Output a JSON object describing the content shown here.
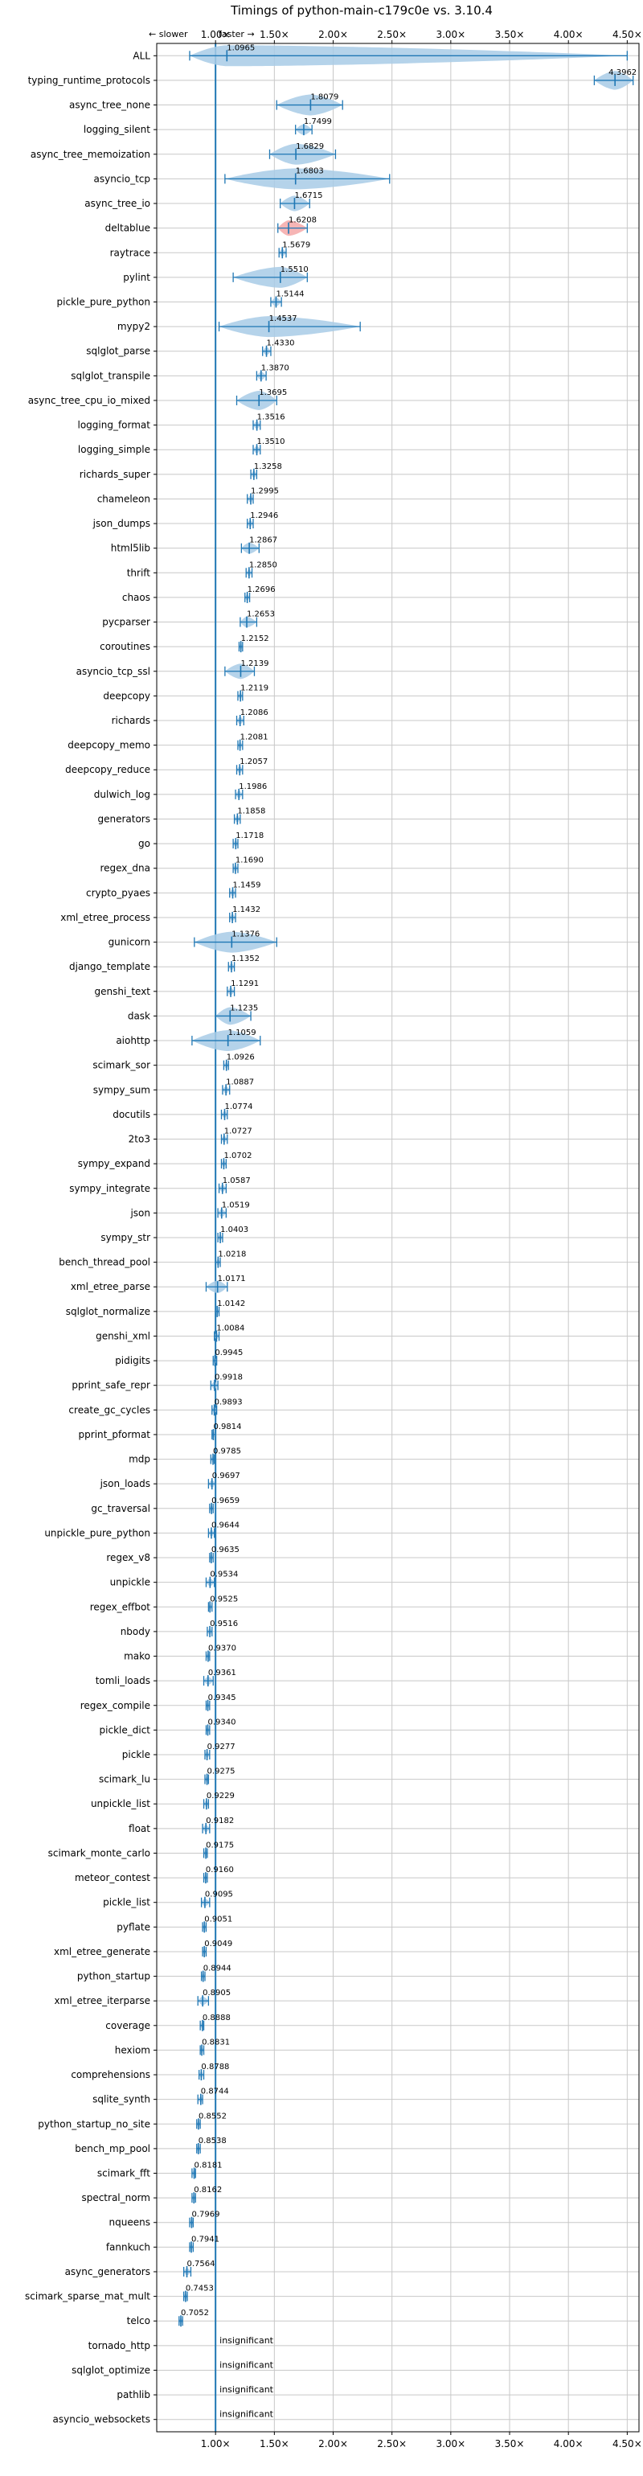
{
  "chart_data": {
    "type": "violin",
    "title": "Timings of python-main-c179c0e vs. 3.10.4",
    "direction_labels": {
      "slower": "← slower",
      "faster": "faster →"
    },
    "xlim": [
      0.5,
      4.6
    ],
    "grid": true,
    "colors": {
      "accent": "#1f77b4",
      "violin": "#a8cbe6",
      "violin_highlight": "#f4a8a8",
      "grid": "#c8c8c8"
    },
    "x_ticks": [
      {
        "value": 1.0,
        "label": "1.00×"
      },
      {
        "value": 1.5,
        "label": "1.50×"
      },
      {
        "value": 2.0,
        "label": "2.00×"
      },
      {
        "value": 2.5,
        "label": "2.50×"
      },
      {
        "value": 3.0,
        "label": "3.00×"
      },
      {
        "value": 3.5,
        "label": "3.50×"
      },
      {
        "value": 4.0,
        "label": "4.00×"
      },
      {
        "value": 4.5,
        "label": "4.50×"
      }
    ],
    "benchmarks": [
      {
        "name": "ALL",
        "value": 1.0965,
        "label": "1.0965",
        "min": 0.78,
        "max": 4.5
      },
      {
        "name": "typing_runtime_protocols",
        "value": 4.3962,
        "label": "4.3962",
        "min": 4.22,
        "max": 4.55
      },
      {
        "name": "async_tree_none",
        "value": 1.8079,
        "label": "1.8079",
        "min": 1.52,
        "max": 2.08
      },
      {
        "name": "logging_silent",
        "value": 1.7499,
        "label": "1.7499",
        "min": 1.68,
        "max": 1.82
      },
      {
        "name": "async_tree_memoization",
        "value": 1.6829,
        "label": "1.6829",
        "min": 1.46,
        "max": 2.02
      },
      {
        "name": "asyncio_tcp",
        "value": 1.6803,
        "label": "1.6803",
        "min": 1.08,
        "max": 2.48
      },
      {
        "name": "async_tree_io",
        "value": 1.6715,
        "label": "1.6715",
        "min": 1.55,
        "max": 1.8
      },
      {
        "name": "deltablue",
        "value": 1.6208,
        "label": "1.6208",
        "min": 1.53,
        "max": 1.78,
        "highlight": true
      },
      {
        "name": "raytrace",
        "value": 1.5679,
        "label": "1.5679",
        "min": 1.54,
        "max": 1.6
      },
      {
        "name": "pylint",
        "value": 1.551,
        "label": "1.5510",
        "min": 1.15,
        "max": 1.78
      },
      {
        "name": "pickle_pure_python",
        "value": 1.5144,
        "label": "1.5144",
        "min": 1.47,
        "max": 1.56
      },
      {
        "name": "mypy2",
        "value": 1.4537,
        "label": "1.4537",
        "min": 1.03,
        "max": 2.23
      },
      {
        "name": "sqlglot_parse",
        "value": 1.433,
        "label": "1.4330",
        "min": 1.4,
        "max": 1.47
      },
      {
        "name": "sqlglot_transpile",
        "value": 1.387,
        "label": "1.3870",
        "min": 1.35,
        "max": 1.43
      },
      {
        "name": "async_tree_cpu_io_mixed",
        "value": 1.3695,
        "label": "1.3695",
        "min": 1.18,
        "max": 1.52
      },
      {
        "name": "logging_format",
        "value": 1.3516,
        "label": "1.3516",
        "min": 1.32,
        "max": 1.38
      },
      {
        "name": "logging_simple",
        "value": 1.351,
        "label": "1.3510",
        "min": 1.32,
        "max": 1.38
      },
      {
        "name": "richards_super",
        "value": 1.3258,
        "label": "1.3258",
        "min": 1.3,
        "max": 1.35
      },
      {
        "name": "chameleon",
        "value": 1.2995,
        "label": "1.2995",
        "min": 1.27,
        "max": 1.32
      },
      {
        "name": "json_dumps",
        "value": 1.2946,
        "label": "1.2946",
        "min": 1.27,
        "max": 1.32
      },
      {
        "name": "html5lib",
        "value": 1.2867,
        "label": "1.2867",
        "min": 1.22,
        "max": 1.37
      },
      {
        "name": "thrift",
        "value": 1.285,
        "label": "1.2850",
        "min": 1.26,
        "max": 1.31
      },
      {
        "name": "chaos",
        "value": 1.2696,
        "label": "1.2696",
        "min": 1.25,
        "max": 1.29
      },
      {
        "name": "pycparser",
        "value": 1.2653,
        "label": "1.2653",
        "min": 1.21,
        "max": 1.35
      },
      {
        "name": "coroutines",
        "value": 1.2152,
        "label": "1.2152",
        "min": 1.2,
        "max": 1.23
      },
      {
        "name": "asyncio_tcp_ssl",
        "value": 1.2139,
        "label": "1.2139",
        "min": 1.08,
        "max": 1.33
      },
      {
        "name": "deepcopy",
        "value": 1.2119,
        "label": "1.2119",
        "min": 1.19,
        "max": 1.23
      },
      {
        "name": "richards",
        "value": 1.2086,
        "label": "1.2086",
        "min": 1.18,
        "max": 1.24
      },
      {
        "name": "deepcopy_memo",
        "value": 1.2081,
        "label": "1.2081",
        "min": 1.19,
        "max": 1.23
      },
      {
        "name": "deepcopy_reduce",
        "value": 1.2057,
        "label": "1.2057",
        "min": 1.18,
        "max": 1.23
      },
      {
        "name": "dulwich_log",
        "value": 1.1986,
        "label": "1.1986",
        "min": 1.17,
        "max": 1.23
      },
      {
        "name": "generators",
        "value": 1.1858,
        "label": "1.1858",
        "min": 1.16,
        "max": 1.21
      },
      {
        "name": "go",
        "value": 1.1718,
        "label": "1.1718",
        "min": 1.15,
        "max": 1.19
      },
      {
        "name": "regex_dna",
        "value": 1.169,
        "label": "1.1690",
        "min": 1.15,
        "max": 1.19
      },
      {
        "name": "crypto_pyaes",
        "value": 1.1459,
        "label": "1.1459",
        "min": 1.12,
        "max": 1.17
      },
      {
        "name": "xml_etree_process",
        "value": 1.1432,
        "label": "1.1432",
        "min": 1.12,
        "max": 1.17
      },
      {
        "name": "gunicorn",
        "value": 1.1376,
        "label": "1.1376",
        "min": 0.82,
        "max": 1.52
      },
      {
        "name": "django_template",
        "value": 1.1352,
        "label": "1.1352",
        "min": 1.11,
        "max": 1.16
      },
      {
        "name": "genshi_text",
        "value": 1.1291,
        "label": "1.1291",
        "min": 1.1,
        "max": 1.16
      },
      {
        "name": "dask",
        "value": 1.1235,
        "label": "1.1235",
        "min": 1.0,
        "max": 1.3
      },
      {
        "name": "aiohttp",
        "value": 1.1059,
        "label": "1.1059",
        "min": 0.8,
        "max": 1.38
      },
      {
        "name": "scimark_sor",
        "value": 1.0926,
        "label": "1.0926",
        "min": 1.07,
        "max": 1.11
      },
      {
        "name": "sympy_sum",
        "value": 1.0887,
        "label": "1.0887",
        "min": 1.06,
        "max": 1.12
      },
      {
        "name": "docutils",
        "value": 1.0774,
        "label": "1.0774",
        "min": 1.05,
        "max": 1.1
      },
      {
        "name": "2to3",
        "value": 1.0727,
        "label": "1.0727",
        "min": 1.05,
        "max": 1.1
      },
      {
        "name": "sympy_expand",
        "value": 1.0702,
        "label": "1.0702",
        "min": 1.05,
        "max": 1.09
      },
      {
        "name": "sympy_integrate",
        "value": 1.0587,
        "label": "1.0587",
        "min": 1.03,
        "max": 1.09
      },
      {
        "name": "json",
        "value": 1.0519,
        "label": "1.0519",
        "min": 1.02,
        "max": 1.09
      },
      {
        "name": "sympy_str",
        "value": 1.0403,
        "label": "1.0403",
        "min": 1.02,
        "max": 1.06
      },
      {
        "name": "bench_thread_pool",
        "value": 1.0218,
        "label": "1.0218",
        "min": 1.0,
        "max": 1.04
      },
      {
        "name": "xml_etree_parse",
        "value": 1.0171,
        "label": "1.0171",
        "min": 0.92,
        "max": 1.1
      },
      {
        "name": "sqlglot_normalize",
        "value": 1.0142,
        "label": "1.0142",
        "min": 1.0,
        "max": 1.03
      },
      {
        "name": "genshi_xml",
        "value": 1.0084,
        "label": "1.0084",
        "min": 0.99,
        "max": 1.03
      },
      {
        "name": "pidigits",
        "value": 0.9945,
        "label": "0.9945",
        "min": 0.98,
        "max": 1.01
      },
      {
        "name": "pprint_safe_repr",
        "value": 0.9918,
        "label": "0.9918",
        "min": 0.96,
        "max": 1.02
      },
      {
        "name": "create_gc_cycles",
        "value": 0.9893,
        "label": "0.9893",
        "min": 0.97,
        "max": 1.01
      },
      {
        "name": "pprint_pformat",
        "value": 0.9814,
        "label": "0.9814",
        "min": 0.97,
        "max": 1.0
      },
      {
        "name": "mdp",
        "value": 0.9785,
        "label": "0.9785",
        "min": 0.96,
        "max": 0.99
      },
      {
        "name": "json_loads",
        "value": 0.9697,
        "label": "0.9697",
        "min": 0.94,
        "max": 1.0
      },
      {
        "name": "gc_traversal",
        "value": 0.9659,
        "label": "0.9659",
        "min": 0.95,
        "max": 0.98
      },
      {
        "name": "unpickle_pure_python",
        "value": 0.9644,
        "label": "0.9644",
        "min": 0.94,
        "max": 0.99
      },
      {
        "name": "regex_v8",
        "value": 0.9635,
        "label": "0.9635",
        "min": 0.95,
        "max": 0.98
      },
      {
        "name": "unpickle",
        "value": 0.9534,
        "label": "0.9534",
        "min": 0.92,
        "max": 0.99
      },
      {
        "name": "regex_effbot",
        "value": 0.9525,
        "label": "0.9525",
        "min": 0.94,
        "max": 0.97
      },
      {
        "name": "nbody",
        "value": 0.9516,
        "label": "0.9516",
        "min": 0.93,
        "max": 0.97
      },
      {
        "name": "mako",
        "value": 0.937,
        "label": "0.9370",
        "min": 0.92,
        "max": 0.95
      },
      {
        "name": "tomli_loads",
        "value": 0.9361,
        "label": "0.9361",
        "min": 0.9,
        "max": 0.98
      },
      {
        "name": "regex_compile",
        "value": 0.9345,
        "label": "0.9345",
        "min": 0.92,
        "max": 0.95
      },
      {
        "name": "pickle_dict",
        "value": 0.934,
        "label": "0.9340",
        "min": 0.92,
        "max": 0.95
      },
      {
        "name": "pickle",
        "value": 0.9277,
        "label": "0.9277",
        "min": 0.91,
        "max": 0.95
      },
      {
        "name": "scimark_lu",
        "value": 0.9275,
        "label": "0.9275",
        "min": 0.91,
        "max": 0.94
      },
      {
        "name": "unpickle_list",
        "value": 0.9229,
        "label": "0.9229",
        "min": 0.9,
        "max": 0.94
      },
      {
        "name": "float",
        "value": 0.9182,
        "label": "0.9182",
        "min": 0.89,
        "max": 0.95
      },
      {
        "name": "scimark_monte_carlo",
        "value": 0.9175,
        "label": "0.9175",
        "min": 0.9,
        "max": 0.93
      },
      {
        "name": "meteor_contest",
        "value": 0.916,
        "label": "0.9160",
        "min": 0.9,
        "max": 0.93
      },
      {
        "name": "pickle_list",
        "value": 0.9095,
        "label": "0.9095",
        "min": 0.88,
        "max": 0.95
      },
      {
        "name": "pyflate",
        "value": 0.9051,
        "label": "0.9051",
        "min": 0.89,
        "max": 0.92
      },
      {
        "name": "xml_etree_generate",
        "value": 0.9049,
        "label": "0.9049",
        "min": 0.89,
        "max": 0.92
      },
      {
        "name": "python_startup",
        "value": 0.8944,
        "label": "0.8944",
        "min": 0.88,
        "max": 0.91
      },
      {
        "name": "xml_etree_iterparse",
        "value": 0.8905,
        "label": "0.8905",
        "min": 0.85,
        "max": 0.94
      },
      {
        "name": "coverage",
        "value": 0.8888,
        "label": "0.8888",
        "min": 0.87,
        "max": 0.9
      },
      {
        "name": "hexiom",
        "value": 0.8831,
        "label": "0.8831",
        "min": 0.87,
        "max": 0.9
      },
      {
        "name": "comprehensions",
        "value": 0.8788,
        "label": "0.8788",
        "min": 0.86,
        "max": 0.9
      },
      {
        "name": "sqlite_synth",
        "value": 0.8744,
        "label": "0.8744",
        "min": 0.85,
        "max": 0.89
      },
      {
        "name": "python_startup_no_site",
        "value": 0.8552,
        "label": "0.8552",
        "min": 0.84,
        "max": 0.87
      },
      {
        "name": "bench_mp_pool",
        "value": 0.8538,
        "label": "0.8538",
        "min": 0.84,
        "max": 0.87
      },
      {
        "name": "scimark_fft",
        "value": 0.8181,
        "label": "0.8181",
        "min": 0.8,
        "max": 0.83
      },
      {
        "name": "spectral_norm",
        "value": 0.8162,
        "label": "0.8162",
        "min": 0.8,
        "max": 0.83
      },
      {
        "name": "nqueens",
        "value": 0.7969,
        "label": "0.7969",
        "min": 0.78,
        "max": 0.81
      },
      {
        "name": "fannkuch",
        "value": 0.7941,
        "label": "0.7941",
        "min": 0.78,
        "max": 0.81
      },
      {
        "name": "async_generators",
        "value": 0.7564,
        "label": "0.7564",
        "min": 0.73,
        "max": 0.79
      },
      {
        "name": "scimark_sparse_mat_mult",
        "value": 0.7453,
        "label": "0.7453",
        "min": 0.73,
        "max": 0.76
      },
      {
        "name": "telco",
        "value": 0.7052,
        "label": "0.7052",
        "min": 0.69,
        "max": 0.72
      },
      {
        "name": "tornado_http",
        "value": null,
        "label": "insignificant"
      },
      {
        "name": "sqlglot_optimize",
        "value": null,
        "label": "insignificant"
      },
      {
        "name": "pathlib",
        "value": null,
        "label": "insignificant"
      },
      {
        "name": "asyncio_websockets",
        "value": null,
        "label": "insignificant"
      }
    ]
  }
}
